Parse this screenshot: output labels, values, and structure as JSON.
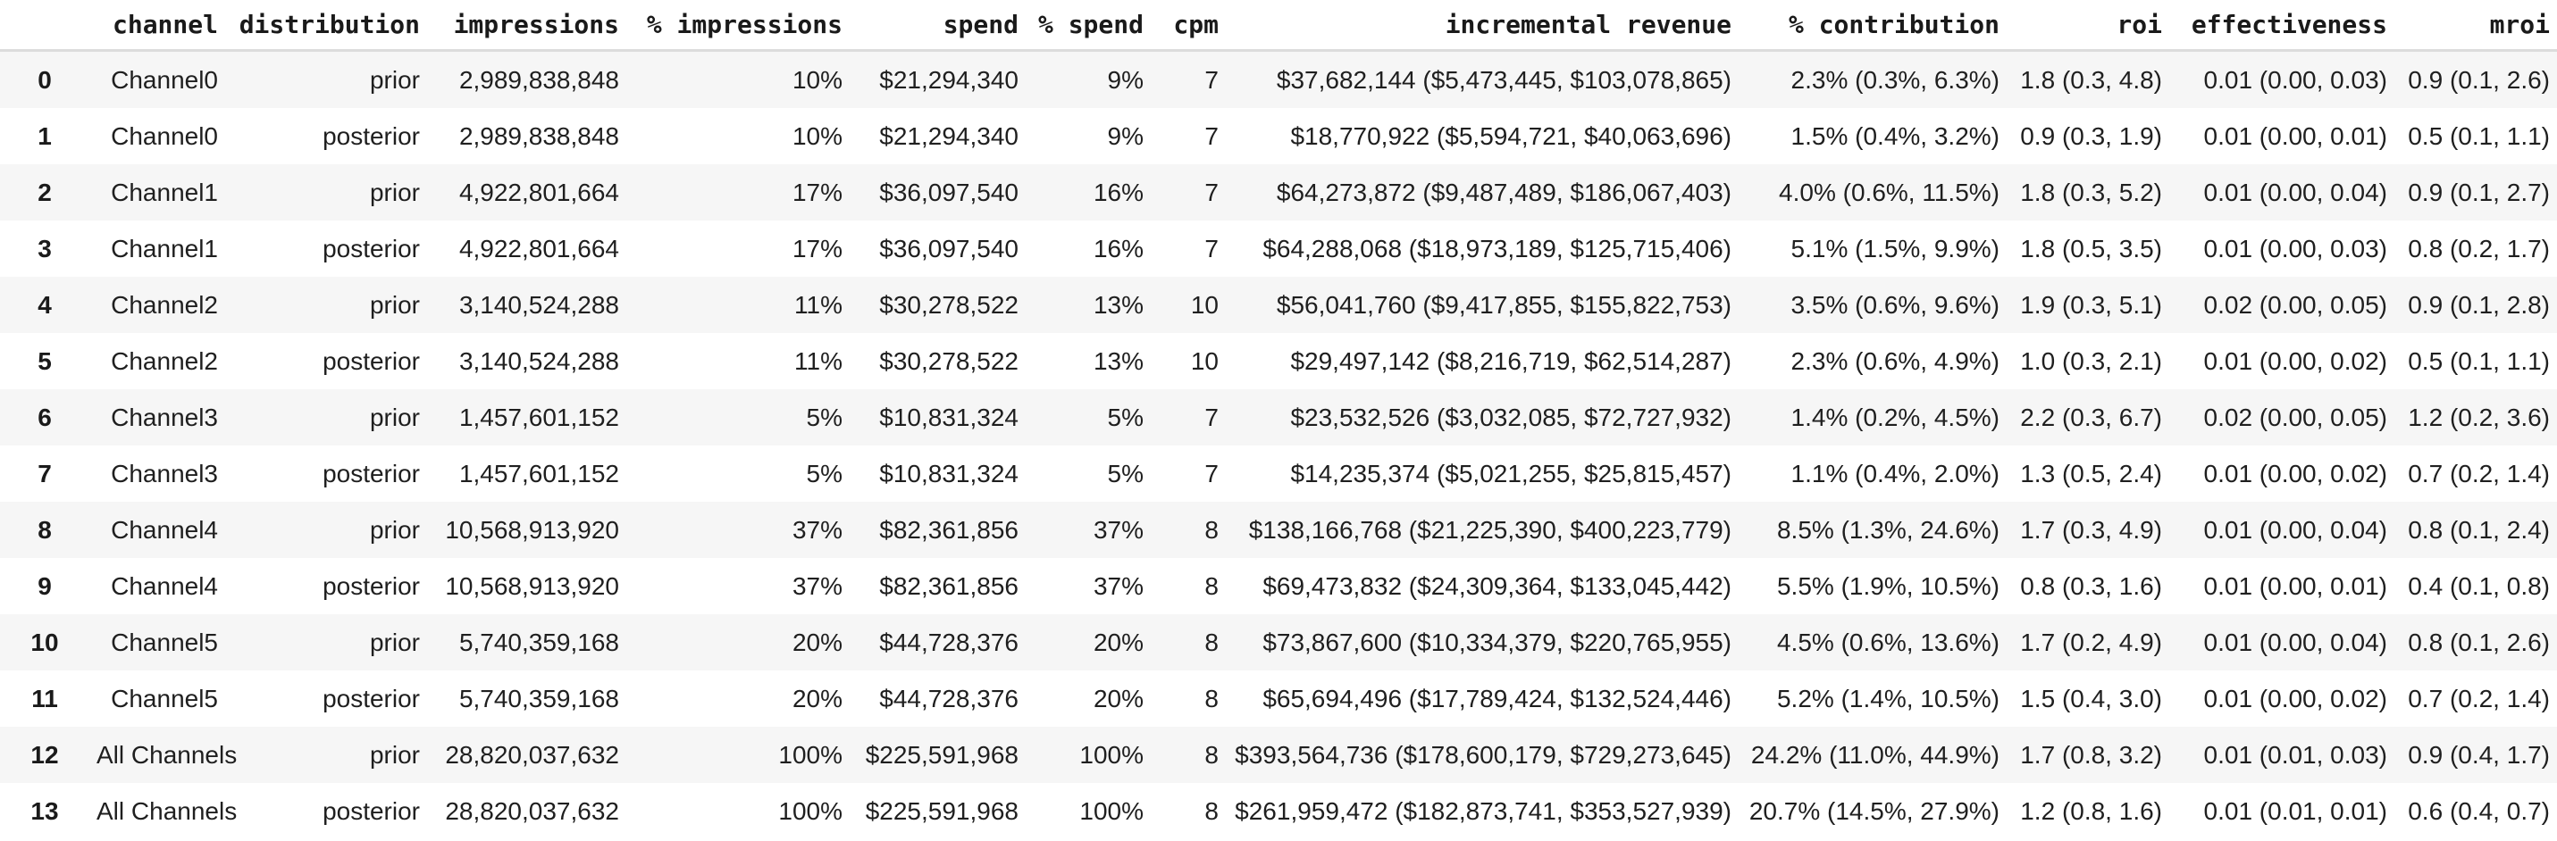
{
  "colors": {
    "row_stripe": "#f6f6f6",
    "header_border": "#dcdcdc",
    "cell_text": "#1f1f1f",
    "header_text": "#1a1a1a",
    "background": "#ffffff"
  },
  "table": {
    "index_header": "",
    "columns": [
      "channel",
      "distribution",
      "impressions",
      "% impressions",
      "spend",
      "% spend",
      "cpm",
      "incremental revenue",
      "% contribution",
      "roi",
      "effectiveness",
      "mroi"
    ],
    "rows": [
      {
        "index": "0",
        "cells": [
          "Channel0",
          "prior",
          "2,989,838,848",
          "10%",
          "$21,294,340",
          "9%",
          "7",
          "$37,682,144 ($5,473,445, $103,078,865)",
          "2.3% (0.3%, 6.3%)",
          "1.8 (0.3, 4.8)",
          "0.01 (0.00, 0.03)",
          "0.9 (0.1, 2.6)"
        ]
      },
      {
        "index": "1",
        "cells": [
          "Channel0",
          "posterior",
          "2,989,838,848",
          "10%",
          "$21,294,340",
          "9%",
          "7",
          "$18,770,922 ($5,594,721, $40,063,696)",
          "1.5% (0.4%, 3.2%)",
          "0.9 (0.3, 1.9)",
          "0.01 (0.00, 0.01)",
          "0.5 (0.1, 1.1)"
        ]
      },
      {
        "index": "2",
        "cells": [
          "Channel1",
          "prior",
          "4,922,801,664",
          "17%",
          "$36,097,540",
          "16%",
          "7",
          "$64,273,872 ($9,487,489, $186,067,403)",
          "4.0% (0.6%, 11.5%)",
          "1.8 (0.3, 5.2)",
          "0.01 (0.00, 0.04)",
          "0.9 (0.1, 2.7)"
        ]
      },
      {
        "index": "3",
        "cells": [
          "Channel1",
          "posterior",
          "4,922,801,664",
          "17%",
          "$36,097,540",
          "16%",
          "7",
          "$64,288,068 ($18,973,189, $125,715,406)",
          "5.1% (1.5%, 9.9%)",
          "1.8 (0.5, 3.5)",
          "0.01 (0.00, 0.03)",
          "0.8 (0.2, 1.7)"
        ]
      },
      {
        "index": "4",
        "cells": [
          "Channel2",
          "prior",
          "3,140,524,288",
          "11%",
          "$30,278,522",
          "13%",
          "10",
          "$56,041,760 ($9,417,855, $155,822,753)",
          "3.5% (0.6%, 9.6%)",
          "1.9 (0.3, 5.1)",
          "0.02 (0.00, 0.05)",
          "0.9 (0.1, 2.8)"
        ]
      },
      {
        "index": "5",
        "cells": [
          "Channel2",
          "posterior",
          "3,140,524,288",
          "11%",
          "$30,278,522",
          "13%",
          "10",
          "$29,497,142 ($8,216,719, $62,514,287)",
          "2.3% (0.6%, 4.9%)",
          "1.0 (0.3, 2.1)",
          "0.01 (0.00, 0.02)",
          "0.5 (0.1, 1.1)"
        ]
      },
      {
        "index": "6",
        "cells": [
          "Channel3",
          "prior",
          "1,457,601,152",
          "5%",
          "$10,831,324",
          "5%",
          "7",
          "$23,532,526 ($3,032,085, $72,727,932)",
          "1.4% (0.2%, 4.5%)",
          "2.2 (0.3, 6.7)",
          "0.02 (0.00, 0.05)",
          "1.2 (0.2, 3.6)"
        ]
      },
      {
        "index": "7",
        "cells": [
          "Channel3",
          "posterior",
          "1,457,601,152",
          "5%",
          "$10,831,324",
          "5%",
          "7",
          "$14,235,374 ($5,021,255, $25,815,457)",
          "1.1% (0.4%, 2.0%)",
          "1.3 (0.5, 2.4)",
          "0.01 (0.00, 0.02)",
          "0.7 (0.2, 1.4)"
        ]
      },
      {
        "index": "8",
        "cells": [
          "Channel4",
          "prior",
          "10,568,913,920",
          "37%",
          "$82,361,856",
          "37%",
          "8",
          "$138,166,768 ($21,225,390, $400,223,779)",
          "8.5% (1.3%, 24.6%)",
          "1.7 (0.3, 4.9)",
          "0.01 (0.00, 0.04)",
          "0.8 (0.1, 2.4)"
        ]
      },
      {
        "index": "9",
        "cells": [
          "Channel4",
          "posterior",
          "10,568,913,920",
          "37%",
          "$82,361,856",
          "37%",
          "8",
          "$69,473,832 ($24,309,364, $133,045,442)",
          "5.5% (1.9%, 10.5%)",
          "0.8 (0.3, 1.6)",
          "0.01 (0.00, 0.01)",
          "0.4 (0.1, 0.8)"
        ]
      },
      {
        "index": "10",
        "cells": [
          "Channel5",
          "prior",
          "5,740,359,168",
          "20%",
          "$44,728,376",
          "20%",
          "8",
          "$73,867,600 ($10,334,379, $220,765,955)",
          "4.5% (0.6%, 13.6%)",
          "1.7 (0.2, 4.9)",
          "0.01 (0.00, 0.04)",
          "0.8 (0.1, 2.6)"
        ]
      },
      {
        "index": "11",
        "cells": [
          "Channel5",
          "posterior",
          "5,740,359,168",
          "20%",
          "$44,728,376",
          "20%",
          "8",
          "$65,694,496 ($17,789,424, $132,524,446)",
          "5.2% (1.4%, 10.5%)",
          "1.5 (0.4, 3.0)",
          "0.01 (0.00, 0.02)",
          "0.7 (0.2, 1.4)"
        ]
      },
      {
        "index": "12",
        "cells": [
          "All Channels",
          "prior",
          "28,820,037,632",
          "100%",
          "$225,591,968",
          "100%",
          "8",
          "$393,564,736 ($178,600,179, $729,273,645)",
          "24.2% (11.0%, 44.9%)",
          "1.7 (0.8, 3.2)",
          "0.01 (0.01, 0.03)",
          "0.9 (0.4, 1.7)"
        ]
      },
      {
        "index": "13",
        "cells": [
          "All Channels",
          "posterior",
          "28,820,037,632",
          "100%",
          "$225,591,968",
          "100%",
          "8",
          "$261,959,472 ($182,873,741, $353,527,939)",
          "20.7% (14.5%, 27.9%)",
          "1.2 (0.8, 1.6)",
          "0.01 (0.01, 0.01)",
          "0.6 (0.4, 0.7)"
        ]
      }
    ]
  }
}
